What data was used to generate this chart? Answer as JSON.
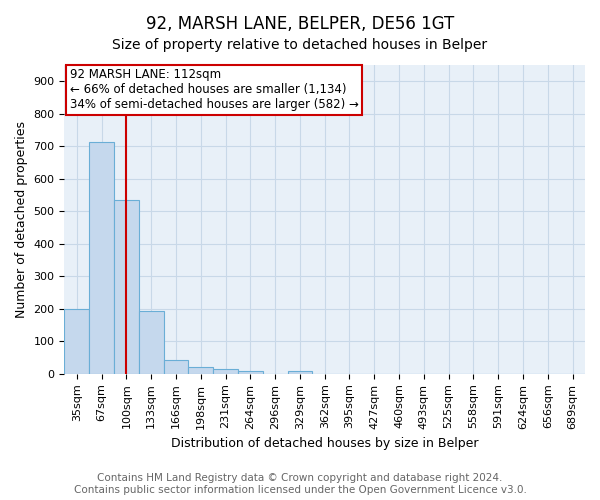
{
  "title": "92, MARSH LANE, BELPER, DE56 1GT",
  "subtitle": "Size of property relative to detached houses in Belper",
  "xlabel": "Distribution of detached houses by size in Belper",
  "ylabel": "Number of detached properties",
  "categories": [
    "35sqm",
    "67sqm",
    "100sqm",
    "133sqm",
    "166sqm",
    "198sqm",
    "231sqm",
    "264sqm",
    "296sqm",
    "329sqm",
    "362sqm",
    "395sqm",
    "427sqm",
    "460sqm",
    "493sqm",
    "525sqm",
    "558sqm",
    "591sqm",
    "624sqm",
    "656sqm",
    "689sqm"
  ],
  "values": [
    200,
    714,
    536,
    193,
    44,
    20,
    14,
    10,
    0,
    8,
    0,
    0,
    0,
    0,
    0,
    0,
    0,
    0,
    0,
    0,
    0
  ],
  "bar_color": "#c5d8ed",
  "bar_edgecolor": "#6aaed6",
  "vline_x": 2.0,
  "vline_color": "#cc0000",
  "annotation_text": "92 MARSH LANE: 112sqm\n← 66% of detached houses are smaller (1,134)\n34% of semi-detached houses are larger (582) →",
  "annotation_box_color": "#cc0000",
  "ylim": [
    0,
    950
  ],
  "yticks": [
    0,
    100,
    200,
    300,
    400,
    500,
    600,
    700,
    800,
    900
  ],
  "footer_line1": "Contains HM Land Registry data © Crown copyright and database right 2024.",
  "footer_line2": "Contains public sector information licensed under the Open Government Licence v3.0.",
  "grid_color": "#c8d8e8",
  "bg_color": "#e8f0f8",
  "title_fontsize": 12,
  "subtitle_fontsize": 10,
  "label_fontsize": 9,
  "tick_fontsize": 8,
  "annotation_fontsize": 8.5,
  "footer_fontsize": 7.5
}
